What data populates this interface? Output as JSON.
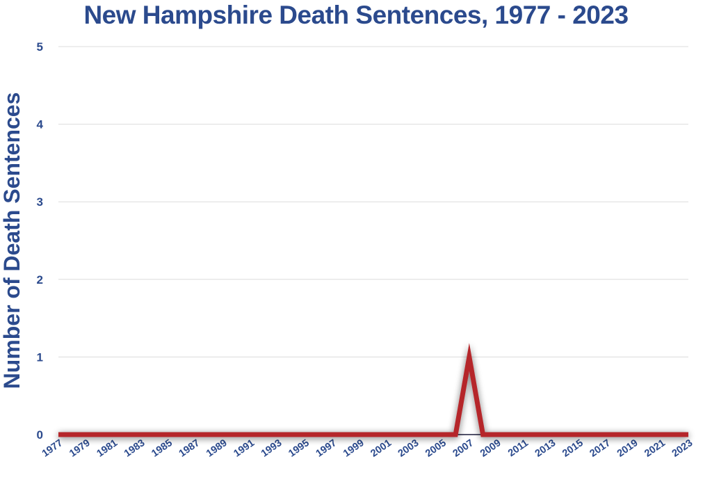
{
  "chart_data": {
    "type": "line",
    "title": "New Hampshire Death Sentences, 1977 - 2023",
    "xlabel": "",
    "ylabel": "Number of Death Sentences",
    "ylim": [
      0,
      5
    ],
    "yticks": [
      "0",
      "1",
      "2",
      "3",
      "4",
      "5"
    ],
    "xticks": [
      "1977",
      "1979",
      "1981",
      "1983",
      "1985",
      "1987",
      "1989",
      "1991",
      "1993",
      "1995",
      "1997",
      "1999",
      "2001",
      "2003",
      "2005",
      "2007",
      "2009",
      "2011",
      "2013",
      "2015",
      "2017",
      "2019",
      "2021",
      "2023"
    ],
    "grid": true,
    "legend": "none",
    "series": [
      {
        "x": [
          1977,
          1978,
          1979,
          1980,
          1981,
          1982,
          1983,
          1984,
          1985,
          1986,
          1987,
          1988,
          1989,
          1990,
          1991,
          1992,
          1993,
          1994,
          1995,
          1996,
          1997,
          1998,
          1999,
          2000,
          2001,
          2002,
          2003,
          2004,
          2005,
          2006,
          2007,
          2008,
          2009,
          2010,
          2011,
          2012,
          2013,
          2014,
          2015,
          2016,
          2017,
          2018,
          2019,
          2020,
          2021,
          2022,
          2023
        ],
        "values": [
          0,
          0,
          0,
          0,
          0,
          0,
          0,
          0,
          0,
          0,
          0,
          0,
          0,
          0,
          0,
          0,
          0,
          0,
          0,
          0,
          0,
          0,
          0,
          0,
          0,
          0,
          0,
          0,
          0,
          0,
          1,
          0,
          0,
          0,
          0,
          0,
          0,
          0,
          0,
          0,
          0,
          0,
          0,
          0,
          0,
          0,
          0
        ],
        "color": "#b5252c"
      }
    ],
    "colors": {
      "text": "#2b4a8d",
      "grid": "#dcdcdc",
      "line": "#b5252c"
    }
  }
}
